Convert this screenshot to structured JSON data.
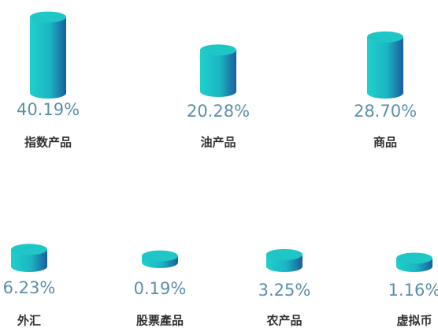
{
  "chart_data": {
    "type": "cylinder",
    "categories": [
      "指数产品",
      "油产品",
      "商品",
      "外汇",
      "股票產品",
      "农产品",
      "虚拟币"
    ],
    "values": [
      40.19,
      20.28,
      28.7,
      6.23,
      0.19,
      3.25,
      1.16
    ],
    "value_labels": [
      "40.19%",
      "20.28%",
      "28.70%",
      "6.23%",
      "0.19%",
      "3.25%",
      "1.16%"
    ],
    "color": "#1fc6c6"
  }
}
